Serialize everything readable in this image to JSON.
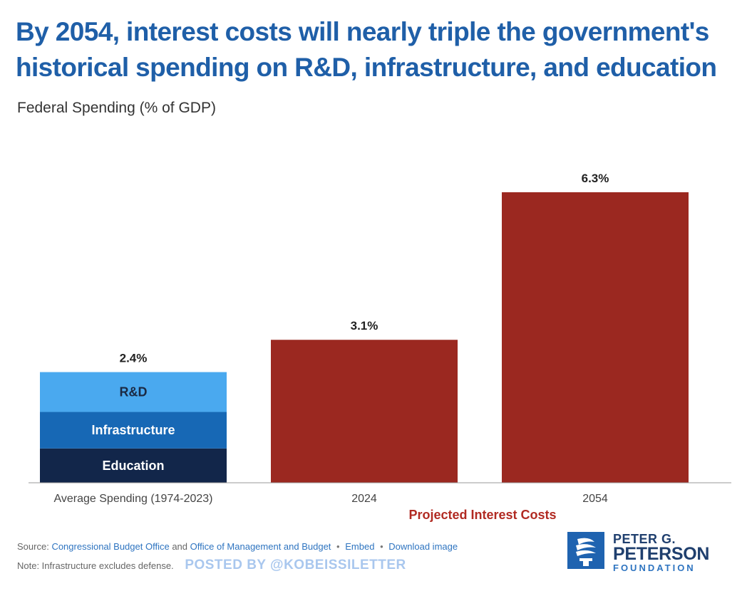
{
  "header": {
    "title": "By 2054, interest costs will nearly triple the government's historical spending on R&D, infrastructure, and education",
    "subtitle": "Federal Spending (% of GDP)"
  },
  "chart_data": {
    "type": "bar",
    "title": "By 2054, interest costs will nearly triple the government's historical spending on R&D, infrastructure, and education",
    "subtitle": "Federal Spending (% of GDP)",
    "ylabel": "",
    "xlabel": "",
    "ylim": [
      0,
      6.3
    ],
    "grid": false,
    "categories": [
      "Average Spending (1974-2023)",
      "2024",
      "2054"
    ],
    "totals": [
      2.4,
      3.1,
      6.3
    ],
    "total_labels": [
      "2.4%",
      "3.1%",
      "6.3%"
    ],
    "stack_segments": [
      {
        "name": "Education",
        "fraction_of_bar": 0.31,
        "color": "#12264a",
        "text_color": "#ffffff"
      },
      {
        "name": "Infrastructure",
        "fraction_of_bar": 0.33,
        "color": "#1768b5",
        "text_color": "#ffffff"
      },
      {
        "name": "R&D",
        "fraction_of_bar": 0.36,
        "color": "#4aa9ef",
        "text_color": "#1b2a44"
      }
    ],
    "interest_color": "#9b2820",
    "group_label": "Projected Interest Costs"
  },
  "footer": {
    "source_prefix": "Source:",
    "source_link1": "Congressional Budget Office",
    "source_and": "and",
    "source_link2": "Office of Management and Budget",
    "bullet": "•",
    "embed": "Embed",
    "download": "Download image",
    "note": "Note: Infrastructure excludes defense.",
    "watermark": "POSTED BY @KOBEISSILETTER"
  },
  "logo": {
    "line1": "PETER G.",
    "line2": "PETERSON",
    "line3": "FOUNDATION"
  }
}
